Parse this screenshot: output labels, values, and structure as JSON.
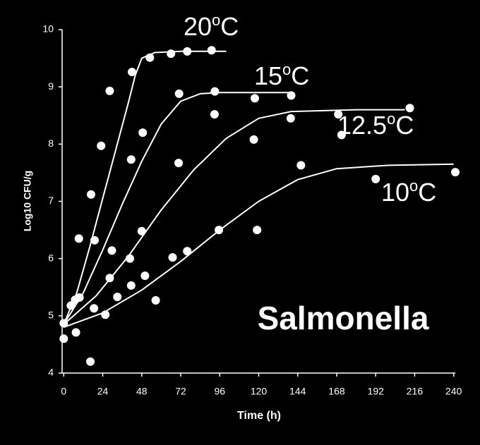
{
  "chart_data": {
    "type": "scatter",
    "annotation": "Salmonella",
    "x_label": "Time (h)",
    "y_label": "Log10 CFU/g",
    "xlim": [
      -1,
      241
    ],
    "xticks": [
      0,
      24,
      48,
      72,
      96,
      120,
      144,
      168,
      192,
      216,
      240
    ],
    "ylim": [
      4,
      10
    ],
    "yticks": [
      4,
      5,
      6,
      7,
      8,
      9,
      10
    ],
    "color": "#ffffff",
    "series": [
      {
        "label": [
          "20",
          "o",
          "C"
        ],
        "x": [
          0,
          4.4,
          9.3,
          16.8,
          23,
          28.3,
          42,
          53,
          66,
          76,
          91
        ],
        "values": [
          4.87,
          5.18,
          6.35,
          7.12,
          7.97,
          8.93,
          9.26,
          9.51,
          9.58,
          9.62,
          9.64
        ],
        "fit_x": [
          0,
          8,
          16,
          24,
          32,
          40,
          44,
          48,
          56,
          72,
          100
        ],
        "fit_y": [
          4.85,
          5.4,
          6.2,
          7.05,
          7.9,
          8.75,
          9.2,
          9.5,
          9.6,
          9.62,
          9.62
        ]
      },
      {
        "label": [
          "15",
          "o",
          "C"
        ],
        "x": [
          9.7,
          19,
          29.6,
          41.5,
          48.6,
          71,
          93,
          117.6,
          140
        ],
        "values": [
          5.32,
          6.32,
          6.14,
          7.73,
          8.2,
          8.88,
          8.92,
          8.8,
          8.85
        ],
        "fit_x": [
          0,
          12,
          24,
          36,
          48,
          60,
          72,
          84,
          96,
          120,
          140
        ],
        "fit_y": [
          4.85,
          5.4,
          6.15,
          6.95,
          7.7,
          8.35,
          8.75,
          8.88,
          8.9,
          8.9,
          8.9
        ]
      },
      {
        "label": [
          "12.5",
          "o",
          "C"
        ],
        "x": [
          7,
          28.3,
          40.7,
          48,
          70.7,
          92.8,
          117,
          139.7,
          169,
          171,
          213
        ],
        "values": [
          5.28,
          5.66,
          6.0,
          6.48,
          7.67,
          8.52,
          8.08,
          8.45,
          8.52,
          8.16,
          8.63
        ],
        "fit_x": [
          0,
          20,
          40,
          60,
          80,
          100,
          120,
          140,
          180,
          210
        ],
        "fit_y": [
          4.85,
          5.35,
          6.05,
          6.85,
          7.55,
          8.1,
          8.45,
          8.57,
          8.6,
          8.6
        ]
      },
      {
        "label": [
          "10",
          "o",
          "C"
        ],
        "x": [
          0,
          7.5,
          16.4,
          18.6,
          25.6,
          33,
          41.5,
          50,
          56.6,
          67,
          76,
          95.5,
          119,
          146,
          192,
          241
        ],
        "values": [
          4.6,
          4.71,
          4.2,
          5.13,
          5.02,
          5.33,
          5.53,
          5.7,
          5.27,
          6.02,
          6.13,
          6.5,
          6.5,
          7.63,
          7.39,
          7.51
        ],
        "fit_x": [
          0,
          24,
          48,
          72,
          96,
          120,
          144,
          168,
          200,
          240
        ],
        "fit_y": [
          4.8,
          5.05,
          5.45,
          5.95,
          6.5,
          7.0,
          7.38,
          7.57,
          7.63,
          7.65
        ]
      }
    ]
  }
}
